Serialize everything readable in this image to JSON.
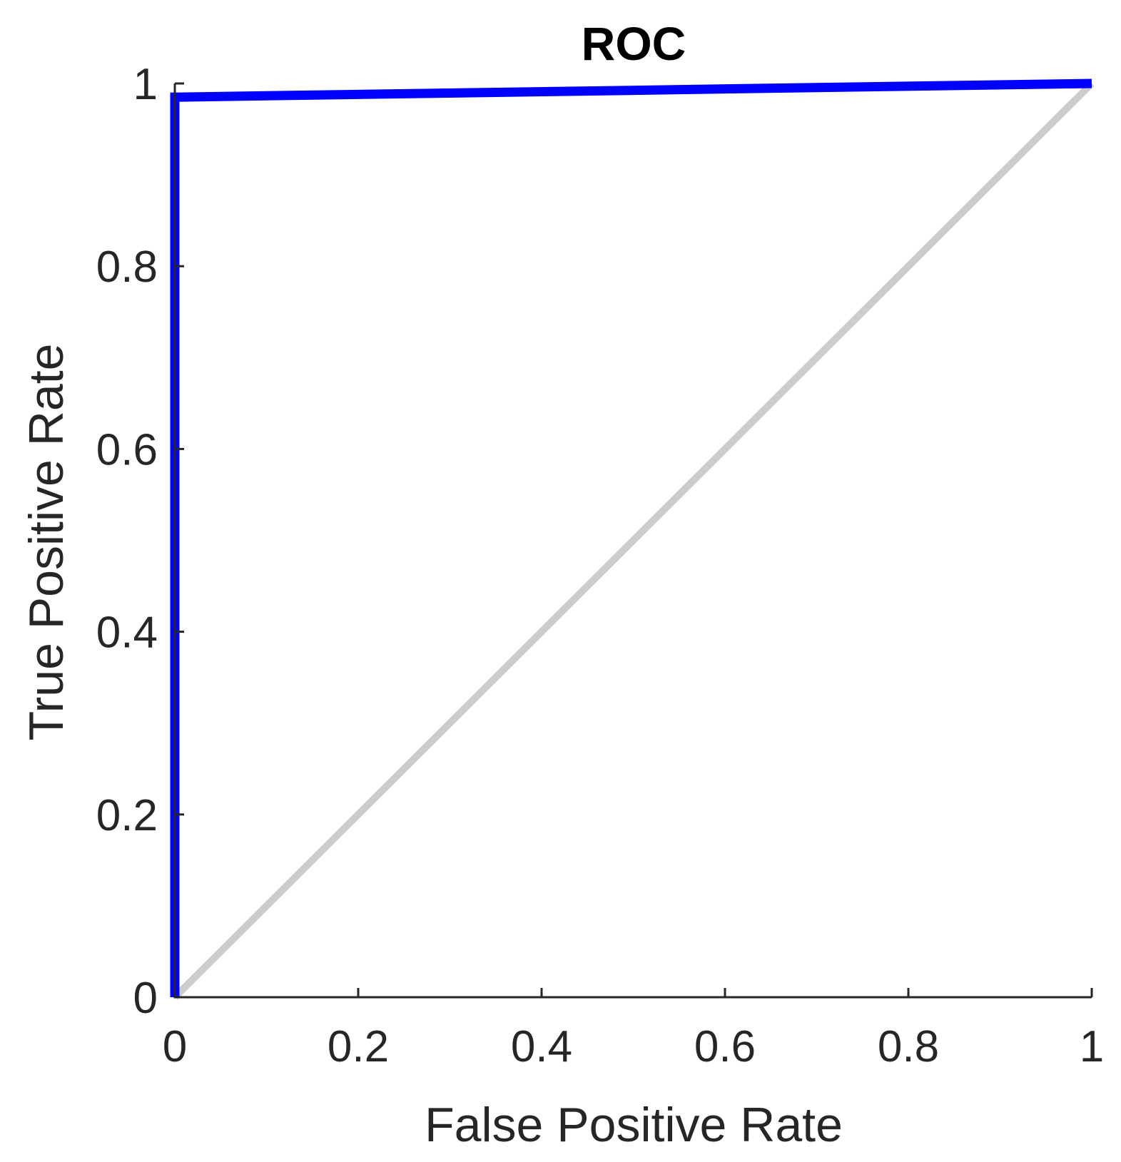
{
  "chart_data": {
    "type": "line",
    "title": "ROC",
    "xlabel": "False Positive Rate",
    "ylabel": "True Positive Rate",
    "xlim": [
      0,
      1
    ],
    "ylim": [
      0,
      1
    ],
    "x_ticks": [
      "0",
      "0.2",
      "0.4",
      "0.6",
      "0.8",
      "1"
    ],
    "y_ticks": [
      "0",
      "0.2",
      "0.4",
      "0.6",
      "0.8",
      "1"
    ],
    "grid": false,
    "legend": "none",
    "series": [
      {
        "role": "roc-curve",
        "color": "#0000ff",
        "x": [
          0,
          0,
          1
        ],
        "y": [
          0,
          0.985,
          1
        ]
      },
      {
        "role": "chance-diagonal",
        "color": "#cccccc",
        "x": [
          0,
          1
        ],
        "y": [
          0,
          1
        ]
      }
    ]
  }
}
